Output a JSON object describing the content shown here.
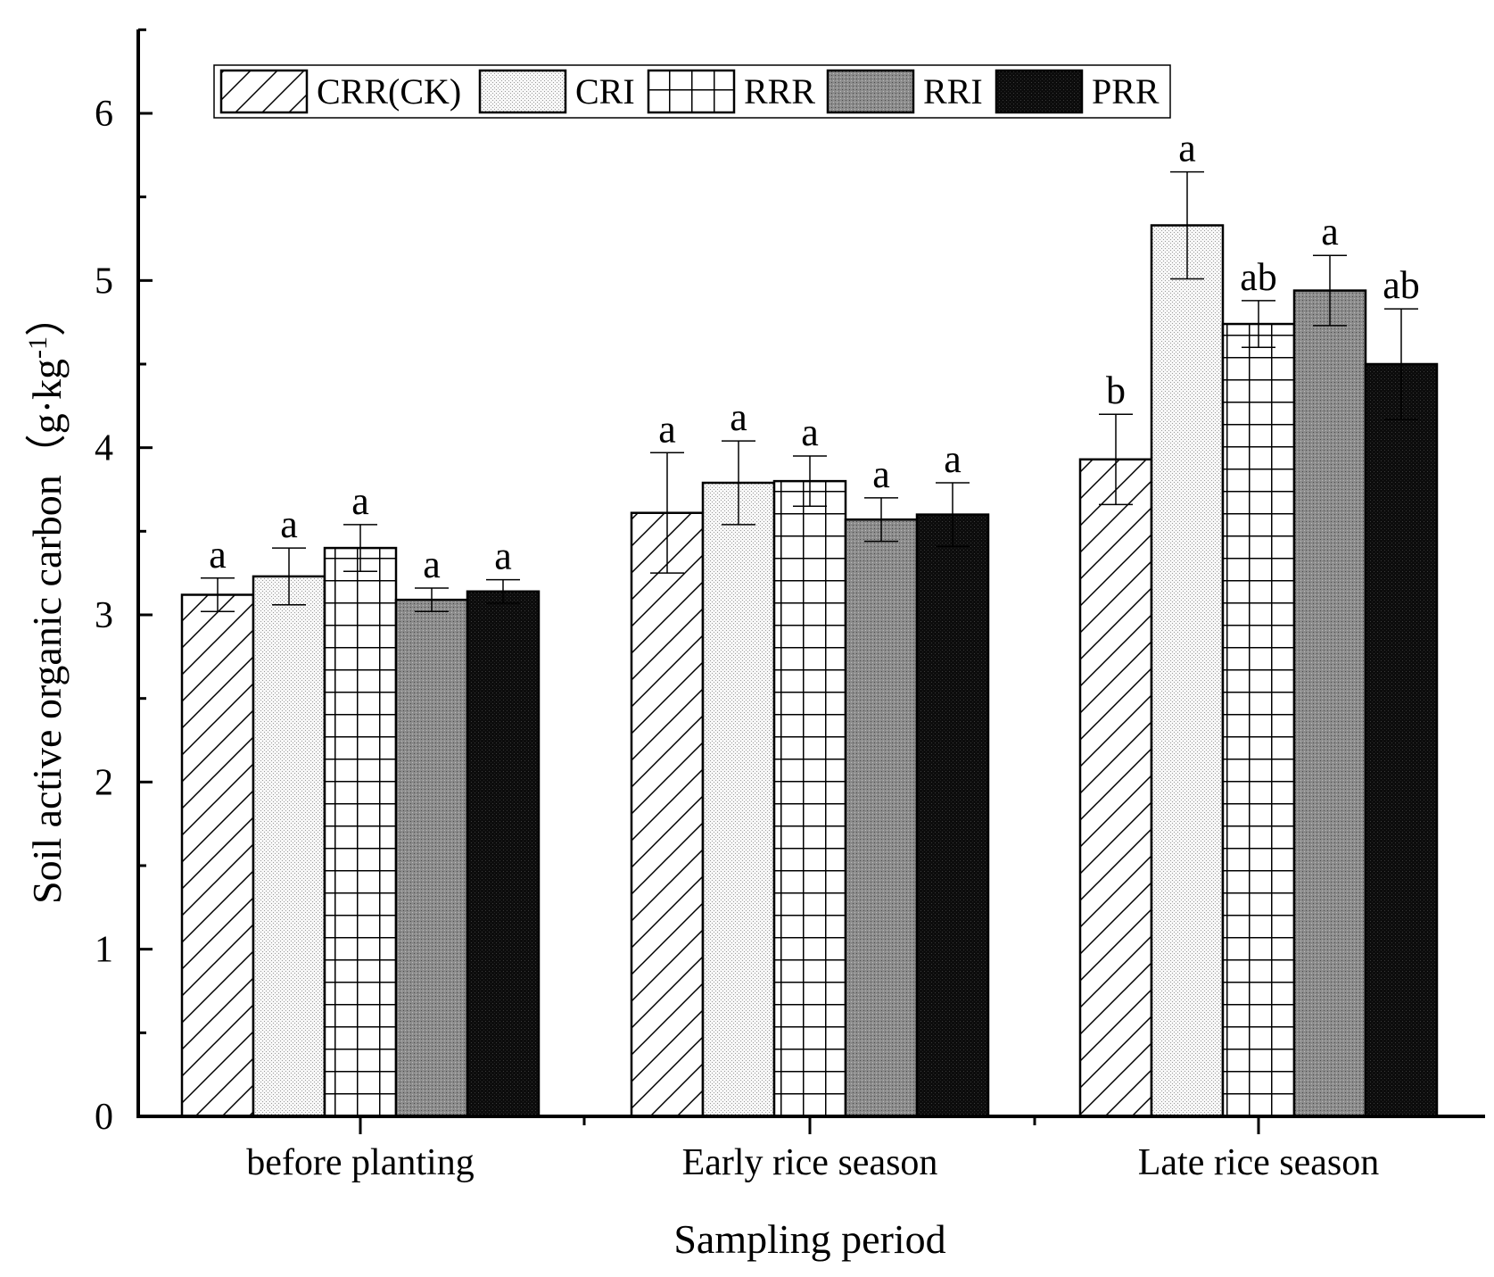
{
  "chart_data": {
    "type": "bar",
    "title": "",
    "xlabel": "Sampling period",
    "ylabel": "Soil active organic carbon（g·kg",
    "ylabel_superscript": "-1",
    "ylabel_close": "）",
    "categories": [
      "before planting",
      "Early rice season",
      "Late rice season"
    ],
    "ylim": [
      0,
      6.5
    ],
    "yticks": [
      "0",
      "1",
      "2",
      "3",
      "4",
      "5",
      "6"
    ],
    "legend_position": "top",
    "series": [
      {
        "name": "CRR(CK)",
        "pattern": "diagonal-hatch",
        "values": [
          3.12,
          3.61,
          3.93
        ],
        "errors": [
          0.1,
          0.36,
          0.27
        ],
        "letters": [
          "a",
          "a",
          "b"
        ]
      },
      {
        "name": "CRI",
        "pattern": "light-dots",
        "values": [
          3.23,
          3.79,
          5.33
        ],
        "errors": [
          0.17,
          0.25,
          0.32
        ],
        "letters": [
          "a",
          "a",
          "a"
        ]
      },
      {
        "name": "RRR",
        "pattern": "grid",
        "values": [
          3.4,
          3.8,
          4.74
        ],
        "errors": [
          0.14,
          0.15,
          0.14
        ],
        "letters": [
          "a",
          "a",
          "ab"
        ]
      },
      {
        "name": "RRI",
        "pattern": "gray-dots",
        "values": [
          3.09,
          3.57,
          4.94
        ],
        "errors": [
          0.07,
          0.13,
          0.21
        ],
        "letters": [
          "a",
          "a",
          "a"
        ]
      },
      {
        "name": "PRR",
        "pattern": "dark-dots",
        "values": [
          3.14,
          3.6,
          4.5
        ],
        "errors": [
          0.07,
          0.19,
          0.33
        ],
        "letters": [
          "a",
          "a",
          "ab"
        ]
      }
    ]
  }
}
